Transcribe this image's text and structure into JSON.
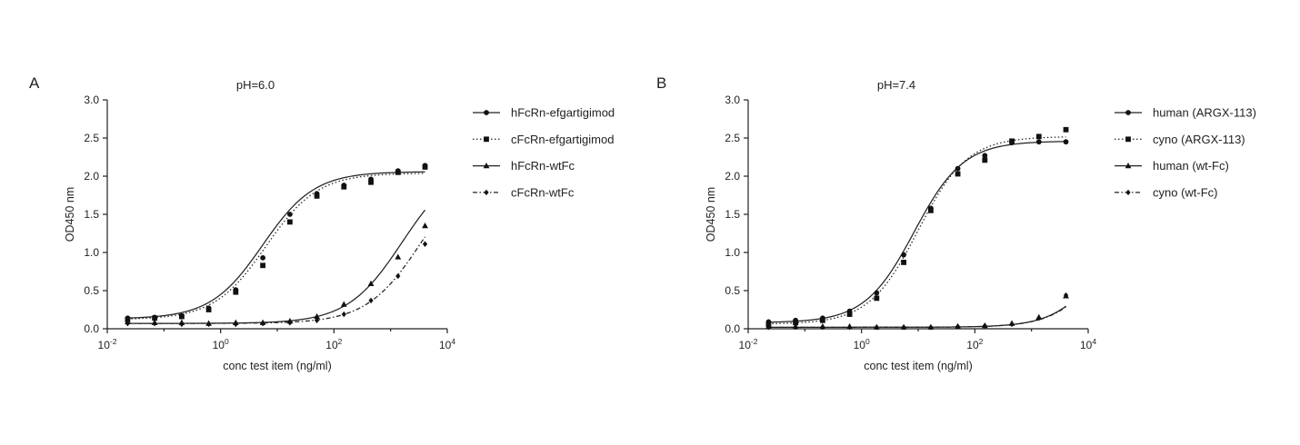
{
  "chart_data": [
    {
      "panel": "A",
      "type": "scatter",
      "title": "pH=6.0",
      "xlabel": "conc test item (ng/ml)",
      "ylabel": "OD450 nm",
      "xscale": "log10",
      "xlim": [
        0.01,
        10000
      ],
      "ylim": [
        0,
        3.0
      ],
      "x_ticks": [
        0.01,
        1,
        100,
        10000
      ],
      "x_tick_labels": [
        {
          "base": "10",
          "exp": "-2"
        },
        {
          "base": "10",
          "exp": "0"
        },
        {
          "base": "10",
          "exp": "2"
        },
        {
          "base": "10",
          "exp": "4"
        }
      ],
      "y_ticks": [
        "0.0",
        "0.5",
        "1.0",
        "1.5",
        "2.0",
        "2.5",
        "3.0"
      ],
      "legend_position": "right",
      "series": [
        {
          "name": "hFcRn-efgartigimod",
          "marker": "circle",
          "line": "solid",
          "fit": {
            "bottom": 0.13,
            "top": 2.06,
            "ec50": 5.5,
            "hill": 0.95
          },
          "x": [
            0.0229,
            0.0686,
            0.206,
            0.617,
            1.85,
            5.56,
            16.7,
            50.0,
            150,
            450,
            1350,
            4050
          ],
          "y": [
            0.14,
            0.15,
            0.17,
            0.27,
            0.51,
            0.93,
            1.5,
            1.77,
            1.88,
            1.96,
            2.07,
            2.14
          ]
        },
        {
          "name": "cFcRn-efgartigimod",
          "marker": "square",
          "line": "dotted",
          "fit": {
            "bottom": 0.12,
            "top": 2.04,
            "ec50": 6.3,
            "hill": 0.95
          },
          "x": [
            0.0229,
            0.0686,
            0.206,
            0.617,
            1.85,
            5.56,
            16.7,
            50.0,
            150,
            450,
            1350,
            4050
          ],
          "y": [
            0.12,
            0.14,
            0.16,
            0.25,
            0.48,
            0.83,
            1.4,
            1.74,
            1.86,
            1.92,
            2.05,
            2.12
          ]
        },
        {
          "name": "hFcRn-wtFc",
          "marker": "triangle",
          "line": "solid",
          "fit": {
            "bottom": 0.07,
            "top": 2.2,
            "ec50": 1600,
            "hill": 0.9
          },
          "x": [
            0.0229,
            0.0686,
            0.206,
            0.617,
            1.85,
            5.56,
            16.7,
            50.0,
            150,
            450,
            1350,
            4050
          ],
          "y": [
            0.09,
            0.08,
            0.08,
            0.07,
            0.08,
            0.08,
            0.1,
            0.16,
            0.32,
            0.59,
            0.94,
            1.35
          ]
        },
        {
          "name": "cFcRn-wtFc",
          "marker": "diamond",
          "line": "dashdot",
          "fit": {
            "bottom": 0.07,
            "top": 2.2,
            "ec50": 3500,
            "hill": 0.9
          },
          "x": [
            0.0229,
            0.0686,
            0.206,
            0.617,
            1.85,
            5.56,
            16.7,
            50.0,
            150,
            450,
            1350,
            4050
          ],
          "y": [
            0.07,
            0.07,
            0.06,
            0.06,
            0.06,
            0.07,
            0.08,
            0.11,
            0.19,
            0.37,
            0.69,
            1.11
          ]
        }
      ]
    },
    {
      "panel": "B",
      "type": "scatter",
      "title": "pH=7.4",
      "xlabel": "conc test item (ng/ml)",
      "ylabel": "OD450 nm",
      "xscale": "log10",
      "xlim": [
        0.01,
        10000
      ],
      "ylim": [
        0,
        3.0
      ],
      "x_ticks": [
        0.01,
        1,
        100,
        10000
      ],
      "x_tick_labels": [
        {
          "base": "10",
          "exp": "-2"
        },
        {
          "base": "10",
          "exp": "0"
        },
        {
          "base": "10",
          "exp": "2"
        },
        {
          "base": "10",
          "exp": "4"
        }
      ],
      "y_ticks": [
        "0.0",
        "0.5",
        "1.0",
        "1.5",
        "2.0",
        "2.5",
        "3.0"
      ],
      "legend_position": "right",
      "series": [
        {
          "name": "human (ARGX-113)",
          "marker": "circle",
          "line": "solid",
          "fit": {
            "bottom": 0.08,
            "top": 2.46,
            "ec50": 8.5,
            "hill": 1.0
          },
          "x": [
            0.0229,
            0.0686,
            0.206,
            0.617,
            1.85,
            5.56,
            16.7,
            50.0,
            150,
            450,
            1350,
            4050
          ],
          "y": [
            0.09,
            0.11,
            0.14,
            0.23,
            0.47,
            0.97,
            1.58,
            2.1,
            2.27,
            2.44,
            2.45,
            2.45
          ]
        },
        {
          "name": "cyno (ARGX-113)",
          "marker": "square",
          "line": "dotted",
          "fit": {
            "bottom": 0.06,
            "top": 2.52,
            "ec50": 10.0,
            "hill": 1.0
          },
          "x": [
            0.0229,
            0.0686,
            0.206,
            0.617,
            1.85,
            5.56,
            16.7,
            50.0,
            150,
            450,
            1350,
            4050
          ],
          "y": [
            0.06,
            0.08,
            0.11,
            0.19,
            0.4,
            0.87,
            1.55,
            2.03,
            2.21,
            2.46,
            2.52,
            2.61
          ]
        },
        {
          "name": "human (wt-Fc)",
          "marker": "triangle",
          "line": "solid",
          "fit": {
            "bottom": 0.02,
            "top": 2.0,
            "ec50": 25000,
            "hill": 1.0
          },
          "x": [
            0.0229,
            0.0686,
            0.206,
            0.617,
            1.85,
            5.56,
            16.7,
            50.0,
            150,
            450,
            1350,
            4050
          ],
          "y": [
            0.03,
            0.03,
            0.03,
            0.03,
            0.02,
            0.02,
            0.02,
            0.03,
            0.04,
            0.07,
            0.15,
            0.43
          ]
        },
        {
          "name": "cyno (wt-Fc)",
          "marker": "diamond",
          "line": "dashdot",
          "fit": {
            "bottom": 0.02,
            "top": 2.0,
            "ec50": 26000,
            "hill": 1.0
          },
          "x": [
            0.0229,
            0.0686,
            0.206,
            0.617,
            1.85,
            5.56,
            16.7,
            50.0,
            150,
            450,
            1350,
            4050
          ],
          "y": [
            0.02,
            0.02,
            0.02,
            0.02,
            0.02,
            0.02,
            0.02,
            0.03,
            0.04,
            0.06,
            0.14,
            0.44
          ]
        }
      ]
    }
  ]
}
